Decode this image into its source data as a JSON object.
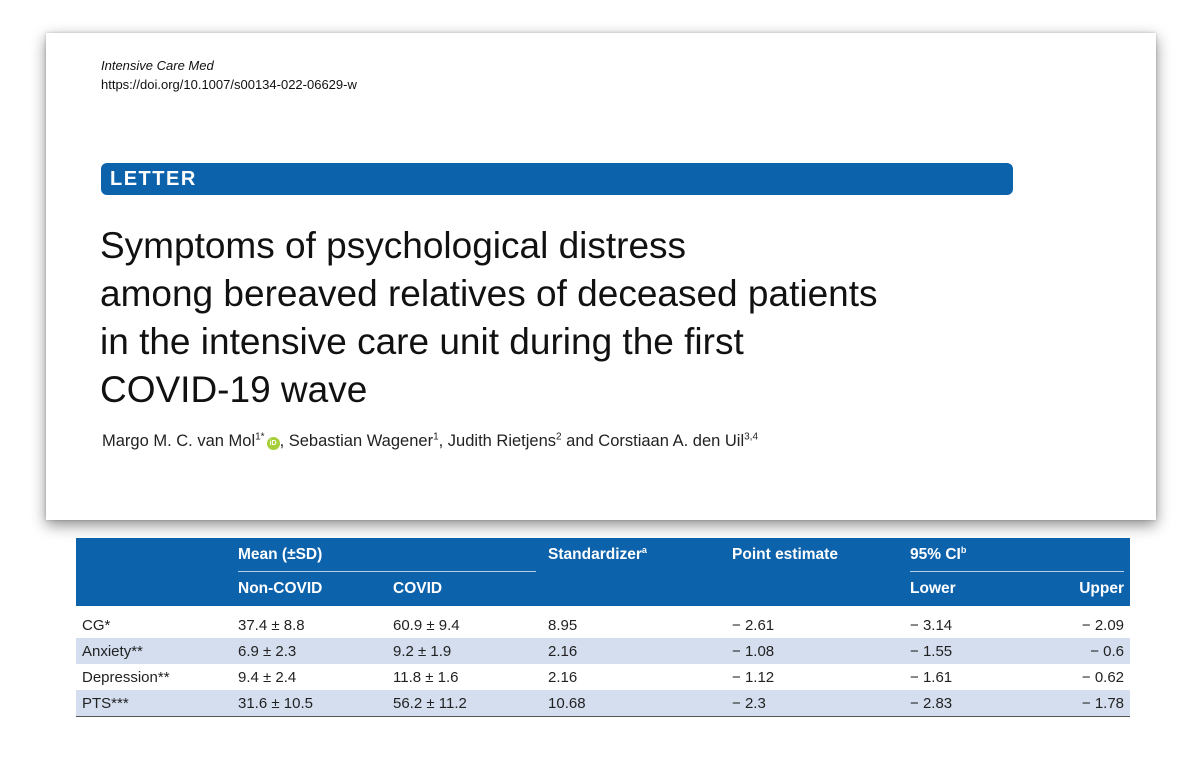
{
  "paper": {
    "journal": "Intensive Care Med",
    "doi": "https://doi.org/10.1007/s00134-022-06629-w",
    "article_type": "LETTER",
    "title_lines": [
      "Symptoms of psychological distress",
      "among bereaved relatives of deceased patients",
      "in the intensive care unit during the first",
      "COVID-19 wave"
    ],
    "authors": [
      {
        "name": "Margo M. C. van Mol",
        "sup": "1*",
        "orcid": true
      },
      {
        "name": "Sebastian Wagener",
        "sup": "1"
      },
      {
        "name": "Judith Rietjens",
        "sup": "2"
      },
      {
        "name": "Corstiaan A. den Uil",
        "sup": "3,4"
      }
    ],
    "author_separators": [
      ", ",
      ", ",
      " and "
    ],
    "accent_color": "#0d62ac"
  },
  "table": {
    "header": {
      "mean": "Mean (±SD)",
      "standardizer": "Standardizer",
      "standardizer_sup": "a",
      "point_estimate": "Point estimate",
      "ci": "95% CI",
      "ci_sup": "b",
      "non_covid": "Non-COVID",
      "covid": "COVID",
      "lower": "Lower",
      "upper": "Upper"
    },
    "rows": [
      {
        "label": "CG*",
        "non_covid": "37.4 ± 8.8",
        "covid": "60.9 ± 9.4",
        "standardizer": "8.95",
        "point": "− 2.61",
        "lower": "− 3.14",
        "upper": "− 2.09"
      },
      {
        "label": "Anxiety**",
        "non_covid": "6.9 ± 2.3",
        "covid": "9.2 ± 1.9",
        "standardizer": "2.16",
        "point": "− 1.08",
        "lower": "− 1.55",
        "upper": "− 0.6"
      },
      {
        "label": "Depression**",
        "non_covid": "9.4 ± 2.4",
        "covid": "11.8 ± 1.6",
        "standardizer": "2.16",
        "point": "− 1.12",
        "lower": "− 1.61",
        "upper": "− 0.62"
      },
      {
        "label": "PTS***",
        "non_covid": "31.6 ± 10.5",
        "covid": "56.2 ± 11.2",
        "standardizer": "10.68",
        "point": "− 2.3",
        "lower": "− 2.83",
        "upper": "− 1.78"
      }
    ]
  }
}
